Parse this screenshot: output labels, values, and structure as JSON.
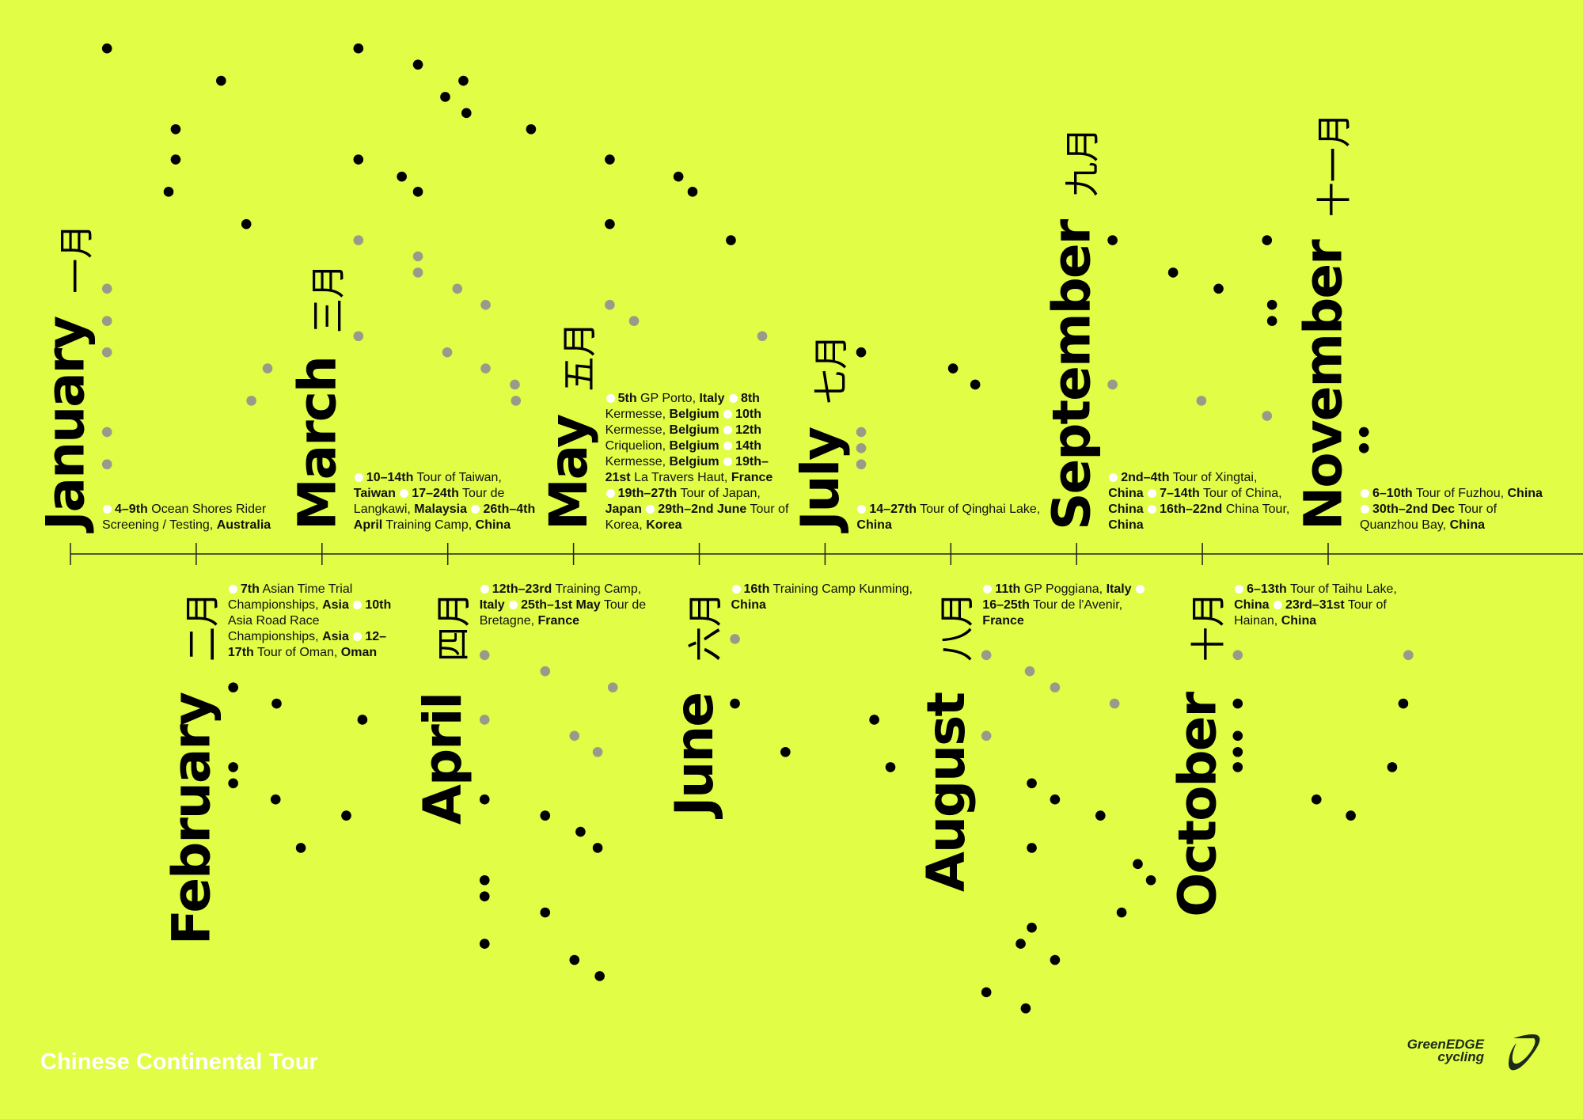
{
  "months": [
    {
      "name": "January",
      "chinese": "一月",
      "events": [
        {
          "date": "4–9th",
          "name": "Ocean Shores Rider Screening / Testing,",
          "place": "Australia"
        }
      ]
    },
    {
      "name": "February",
      "chinese": "二月",
      "events": [
        {
          "date": "7th",
          "name": "Asian Time Trial Championships,",
          "place": "Asia"
        },
        {
          "date": "10th",
          "name": "Asia Road Race Championships,",
          "place": "Asia"
        },
        {
          "date": "12–17th",
          "name": "Tour of Oman,",
          "place": "Oman"
        }
      ]
    },
    {
      "name": "March",
      "chinese": "三月",
      "events": [
        {
          "date": "10–14th",
          "name": "Tour of Taiwan,",
          "place": "Taiwan"
        },
        {
          "date": "17–24th",
          "name": "Tour de Langkawi,",
          "place": "Malaysia"
        },
        {
          "date": "26th–4th April",
          "name": "Training Camp,",
          "place": "China"
        }
      ]
    },
    {
      "name": "April",
      "chinese": "四月",
      "events": [
        {
          "date": "12th–23rd",
          "name": "Training Camp,",
          "place": "Italy"
        },
        {
          "date": "25th–1st May",
          "name": "Tour de Bretagne,",
          "place": "France"
        }
      ]
    },
    {
      "name": "May",
      "chinese": "五月",
      "events": [
        {
          "date": "5th",
          "name": "GP Porto,",
          "place": "Italy"
        },
        {
          "date": "8th",
          "name": "Kermesse,",
          "place": "Belgium"
        },
        {
          "date": "10th",
          "name": "Kermesse,",
          "place": "Belgium"
        },
        {
          "date": "12th",
          "name": "Criquelion,",
          "place": "Belgium"
        },
        {
          "date": "14th",
          "name": "Kermesse,",
          "place": "Belgium"
        },
        {
          "date": "19th–21st",
          "name": "La Travers Haut,",
          "place": "France"
        },
        {
          "date": "19th–27th",
          "name": "Tour of Japan,",
          "place": "Japan"
        },
        {
          "date": "29th–2nd June",
          "name": "Tour of Korea,",
          "place": "Korea"
        }
      ]
    },
    {
      "name": "June",
      "chinese": "六月",
      "events": [
        {
          "date": "16th",
          "name": "Training Camp Kunming,",
          "place": "China"
        }
      ]
    },
    {
      "name": "July",
      "chinese": "七月",
      "events": [
        {
          "date": "14–27th",
          "name": "Tour of Qinghai Lake,",
          "place": "China"
        }
      ]
    },
    {
      "name": "August",
      "chinese": "八月",
      "events": [
        {
          "date": "11th",
          "name": "GP Poggiana,",
          "place": "Italy"
        },
        {
          "date": "16–25th",
          "name": "Tour de l'Avenir,",
          "place": "France"
        }
      ]
    },
    {
      "name": "September",
      "chinese": "九月",
      "events": [
        {
          "date": "2nd–4th",
          "name": "Tour of Xingtai,",
          "place": "China"
        },
        {
          "date": "7–14th",
          "name": "Tour of China,",
          "place": "China"
        },
        {
          "date": "16th–22nd",
          "name": "China Tour,",
          "place": "China"
        }
      ]
    },
    {
      "name": "October",
      "chinese": "十月",
      "events": [
        {
          "date": "6–13th",
          "name": "Tour of Taihu Lake,",
          "place": "China"
        },
        {
          "date": "23rd–31st",
          "name": "Tour of Hainan,",
          "place": "China"
        }
      ]
    },
    {
      "name": "November",
      "chinese": "十一月",
      "events": [
        {
          "date": "6–10th",
          "name": "Tour of Fuzhou,",
          "place": "China"
        },
        {
          "date": "30th–2nd Dec",
          "name": "Tour of Quanzhou Bay,",
          "place": "China"
        }
      ]
    }
  ],
  "footer": {
    "title": "Chinese Continental Tour",
    "logo": [
      "GreenEDGE",
      "cycling"
    ]
  }
}
